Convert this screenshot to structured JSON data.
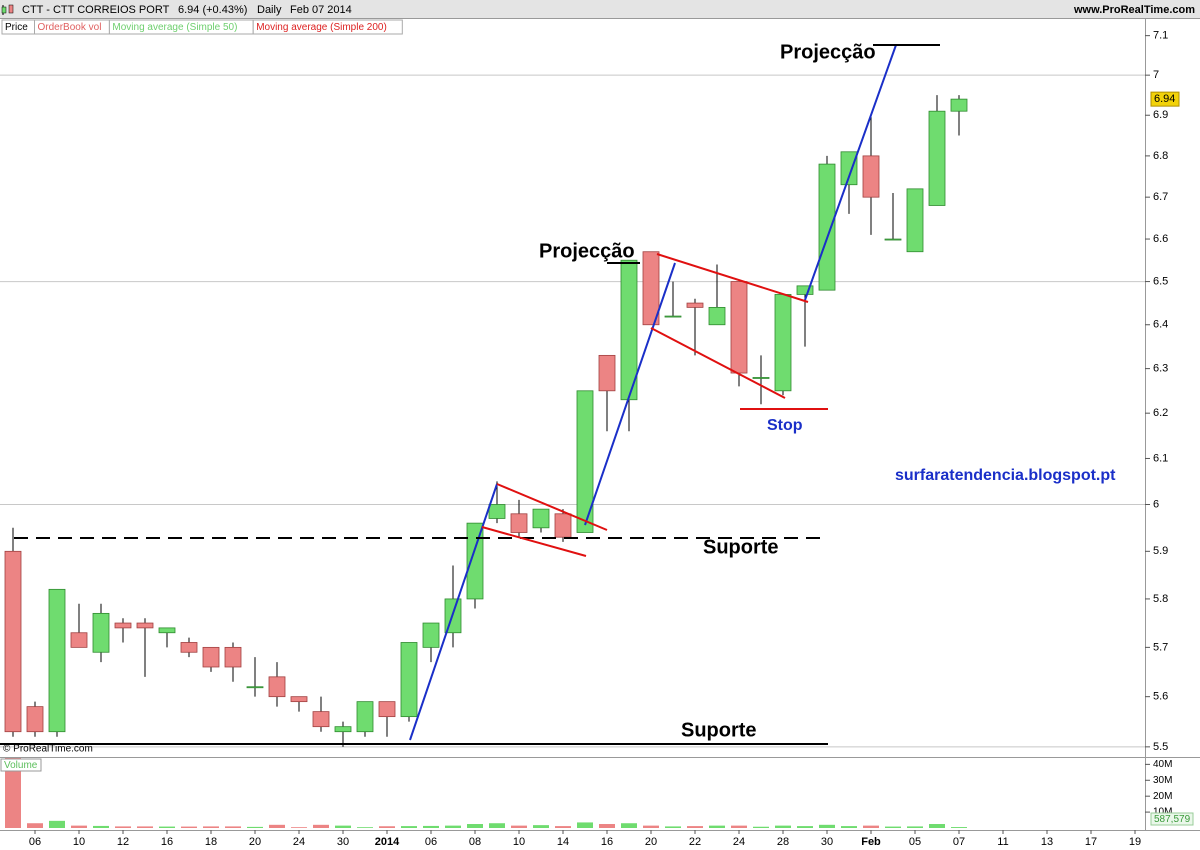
{
  "chart_data": [
    {
      "type": "candlestick",
      "title": "CTT - CTT CORREIOS PORT",
      "quote": "6.94 (+0.43%)",
      "period": "Daily",
      "date": "Feb 07 2014",
      "source": "www.ProRealTime.com",
      "copyright": "© ProRealTime.com",
      "tabs": [
        "Price",
        "OrderBook vol",
        "Moving average (Simple 50)",
        "Moving average (Simple 200)"
      ],
      "annotations": [
        "Projecção",
        "Projecção",
        "Suporte",
        "Suporte",
        "Stop",
        "surfaratendencia.blogspot.pt"
      ],
      "categories": [
        null,
        "06",
        null,
        "10",
        null,
        "12",
        null,
        "16",
        null,
        "18",
        null,
        "20",
        null,
        "24",
        null,
        "30",
        null,
        "2014",
        null,
        "06",
        null,
        "08",
        null,
        "10",
        null,
        "14",
        null,
        "16",
        null,
        "20",
        null,
        "22",
        null,
        "24",
        null,
        "28",
        null,
        "30",
        null,
        "Feb",
        null,
        "05",
        null,
        "07",
        null,
        "11",
        null,
        "13",
        null,
        "17",
        null,
        "19"
      ],
      "open": [
        5.9,
        5.58,
        5.53,
        5.73,
        5.69,
        5.75,
        5.75,
        5.73,
        5.71,
        5.7,
        5.7,
        5.62,
        5.64,
        5.6,
        5.57,
        5.53,
        5.53,
        5.59,
        5.56,
        5.7,
        5.73,
        5.8,
        5.97,
        5.98,
        5.95,
        5.98,
        5.94,
        6.33,
        6.23,
        6.57,
        6.42,
        6.45,
        6.4,
        6.5,
        6.28,
        6.25,
        6.47,
        6.48,
        6.73,
        6.8,
        6.6,
        6.57,
        6.68,
        6.91,
        null,
        null,
        null,
        null,
        null,
        null,
        null,
        null
      ],
      "high": [
        5.95,
        5.59,
        5.82,
        5.79,
        5.79,
        5.76,
        5.76,
        5.74,
        5.72,
        5.7,
        5.71,
        5.68,
        5.67,
        5.6,
        5.6,
        5.55,
        5.59,
        5.59,
        5.71,
        5.75,
        5.87,
        5.96,
        6.05,
        6.01,
        5.99,
        5.99,
        6.25,
        6.33,
        6.55,
        6.57,
        6.5,
        6.46,
        6.54,
        6.5,
        6.33,
        6.47,
        6.49,
        6.8,
        6.81,
        6.9,
        6.71,
        6.72,
        6.95,
        6.95,
        null,
        null,
        null,
        null,
        null,
        null,
        null,
        null
      ],
      "low": [
        5.52,
        5.52,
        5.52,
        5.7,
        5.67,
        5.71,
        5.64,
        5.7,
        5.68,
        5.65,
        5.63,
        5.6,
        5.58,
        5.57,
        5.53,
        5.5,
        5.52,
        5.52,
        5.55,
        5.67,
        5.7,
        5.78,
        5.96,
        5.93,
        5.94,
        5.92,
        5.94,
        6.16,
        6.16,
        6.4,
        6.42,
        6.33,
        6.4,
        6.26,
        6.22,
        6.24,
        6.35,
        6.48,
        6.66,
        6.61,
        6.6,
        6.57,
        6.68,
        6.85,
        null,
        null,
        null,
        null,
        null,
        null,
        null,
        null
      ],
      "close": [
        5.53,
        5.53,
        5.82,
        5.7,
        5.77,
        5.74,
        5.74,
        5.74,
        5.69,
        5.66,
        5.66,
        5.62,
        5.6,
        5.59,
        5.54,
        5.54,
        5.59,
        5.56,
        5.71,
        5.75,
        5.8,
        5.96,
        6.0,
        5.94,
        5.99,
        5.93,
        6.25,
        6.25,
        6.55,
        6.4,
        6.42,
        6.44,
        6.44,
        6.29,
        6.28,
        6.47,
        6.49,
        6.78,
        6.81,
        6.7,
        6.6,
        6.72,
        6.91,
        6.94,
        null,
        null,
        null,
        null,
        null,
        null,
        null,
        null
      ],
      "up_color": "#6fdc6f",
      "down_color": "#ec8484",
      "log_scale": true,
      "ylim": [
        5.48,
        7.14
      ],
      "yticks": [
        5.5,
        5.6,
        5.7,
        5.8,
        5.9,
        6,
        6.1,
        6.2,
        6.3,
        6.4,
        6.5,
        6.6,
        6.7,
        6.8,
        6.9,
        7,
        7.1
      ]
    },
    {
      "type": "bar",
      "title": "Volume",
      "readout": "587,579",
      "values": [
        44000000,
        3000000,
        4500000,
        1500000,
        1300000,
        1000000,
        1000000,
        900000,
        900000,
        1000000,
        1000000,
        700000,
        2000000,
        500000,
        2000000,
        1500000,
        500000,
        1100000,
        1200000,
        1300000,
        1500000,
        2500000,
        3000000,
        1500000,
        1800000,
        1200000,
        3500000,
        2500000,
        3000000,
        1500000,
        1000000,
        1200000,
        1500000,
        1500000,
        800000,
        1500000,
        1200000,
        2000000,
        1200000,
        1500000,
        900000,
        1000000,
        2500000,
        587579,
        null,
        null,
        null,
        null,
        null,
        null,
        null,
        null
      ],
      "ylim": [
        0,
        44000000
      ],
      "yticks": [
        {
          "value": 10000000,
          "label": "10M"
        },
        {
          "value": 20000000,
          "label": "20M"
        },
        {
          "value": 30000000,
          "label": "30M"
        },
        {
          "value": 40000000,
          "label": "40M"
        }
      ]
    }
  ]
}
